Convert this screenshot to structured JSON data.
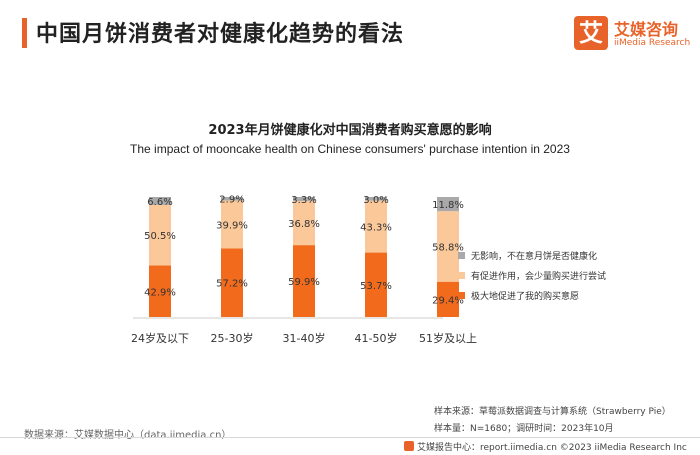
{
  "header": {
    "title": "中国月饼消费者对健康化趋势的看法"
  },
  "logo": {
    "mark": "艾",
    "name_cn": "艾媒咨询",
    "name_en": "iiMedia Research"
  },
  "chart_data": {
    "type": "bar",
    "stacked": true,
    "percent": true,
    "title": "2023年月饼健康化对中国消费者购买意愿的影响",
    "subtitle": "The impact of mooncake health on Chinese consumers' purchase intention in 2023",
    "categories": [
      "24岁及以下",
      "25-30岁",
      "31-40岁",
      "41-50岁",
      "51岁及以上"
    ],
    "series": [
      {
        "name": "极大地促进了我的购买意愿",
        "color": "#f26b1d",
        "values": [
          42.9,
          57.2,
          59.9,
          53.7,
          29.4
        ],
        "labels": [
          "42.9%",
          "57.2%",
          "59.9%",
          "53.7%",
          "29.4%"
        ]
      },
      {
        "name": "有促进作用，会少量购买进行尝试",
        "color": "#fbc89a",
        "values": [
          50.5,
          39.9,
          36.8,
          43.3,
          58.8
        ],
        "labels": [
          "50.5%",
          "39.9%",
          "36.8%",
          "43.3%",
          "58.8%"
        ]
      },
      {
        "name": "无影响，不在意月饼是否健康化",
        "color": "#a9a9a9",
        "values": [
          6.6,
          2.9,
          3.3,
          3.0,
          11.8
        ],
        "labels": [
          "6.6%",
          "2.9%",
          "3.3%",
          "3.0%",
          "11.8%"
        ]
      }
    ],
    "ylim": [
      0,
      100
    ],
    "legend": "right",
    "grid": false
  },
  "footer": {
    "source": "数据来源：艾媒数据中心（data.iimedia.cn）",
    "sample_source": "样本来源：草莓派数据调查与计算系统（Strawberry Pie）",
    "sample_info": "样本量：N=1680；调研时间：2023年10月",
    "watermark": "艾媒报告中心：report.iimedia.cn  ©2023  iiMedia Research  Inc"
  }
}
